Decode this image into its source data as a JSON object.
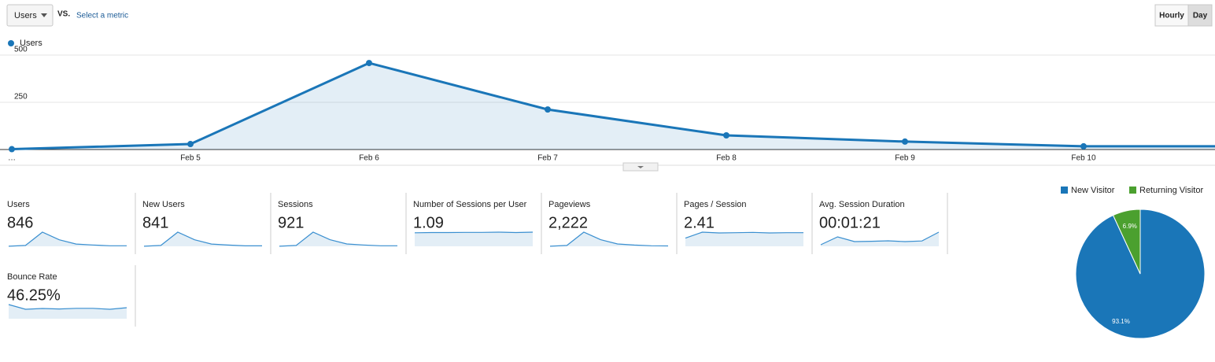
{
  "controls": {
    "metric": "Users",
    "vs": "VS.",
    "select": "Select a metric",
    "hourly": "Hourly",
    "day": "Day"
  },
  "chart_data": [
    {
      "type": "line",
      "legend": "Users",
      "color": "#1a76b8",
      "categories": [
        "…",
        "Feb 5",
        "Feb 6",
        "Feb 7",
        "Feb 8",
        "Feb 9",
        "Feb 10",
        null
      ],
      "values": [
        2,
        29,
        458,
        212,
        75,
        42,
        17,
        17
      ],
      "ylim": [
        0,
        500
      ],
      "yticks": [
        250,
        500
      ],
      "grid": true
    },
    {
      "type": "pie",
      "categories": [
        "New Visitor",
        "Returning Visitor"
      ],
      "values": [
        93.1,
        6.9
      ],
      "value_labels": [
        "93.1%",
        "6.9%"
      ],
      "colors": [
        "#1a76b8",
        "#4ba02f"
      ]
    }
  ],
  "metrics": [
    {
      "label": "Users",
      "value": "846",
      "trend": [
        2,
        29,
        458,
        212,
        75,
        42,
        17,
        17
      ]
    },
    {
      "label": "New Users",
      "value": "841",
      "trend": [
        2,
        29,
        455,
        210,
        74,
        41,
        16,
        14
      ]
    },
    {
      "label": "Sessions",
      "value": "921",
      "trend": [
        2,
        31,
        490,
        230,
        82,
        46,
        20,
        20
      ]
    },
    {
      "label": "Number of Sessions per User",
      "value": "1.09",
      "trend": [
        1.05,
        1.07,
        1.07,
        1.08,
        1.08,
        1.1,
        1.07,
        1.1
      ]
    },
    {
      "label": "Pageviews",
      "value": "2,222",
      "trend": [
        4,
        70,
        1200,
        560,
        200,
        110,
        45,
        33
      ]
    },
    {
      "label": "Pages / Session",
      "value": "2.41",
      "trend": [
        1.5,
        2.6,
        2.45,
        2.5,
        2.55,
        2.45,
        2.5,
        2.5
      ]
    },
    {
      "label": "Avg. Session Duration",
      "value": "00:01:21",
      "trend": [
        10,
        60,
        30,
        32,
        35,
        30,
        34,
        90
      ]
    },
    {
      "label": "Bounce Rate",
      "value": "46.25%",
      "trend": [
        90,
        60,
        65,
        62,
        66,
        66,
        60,
        70
      ]
    }
  ]
}
